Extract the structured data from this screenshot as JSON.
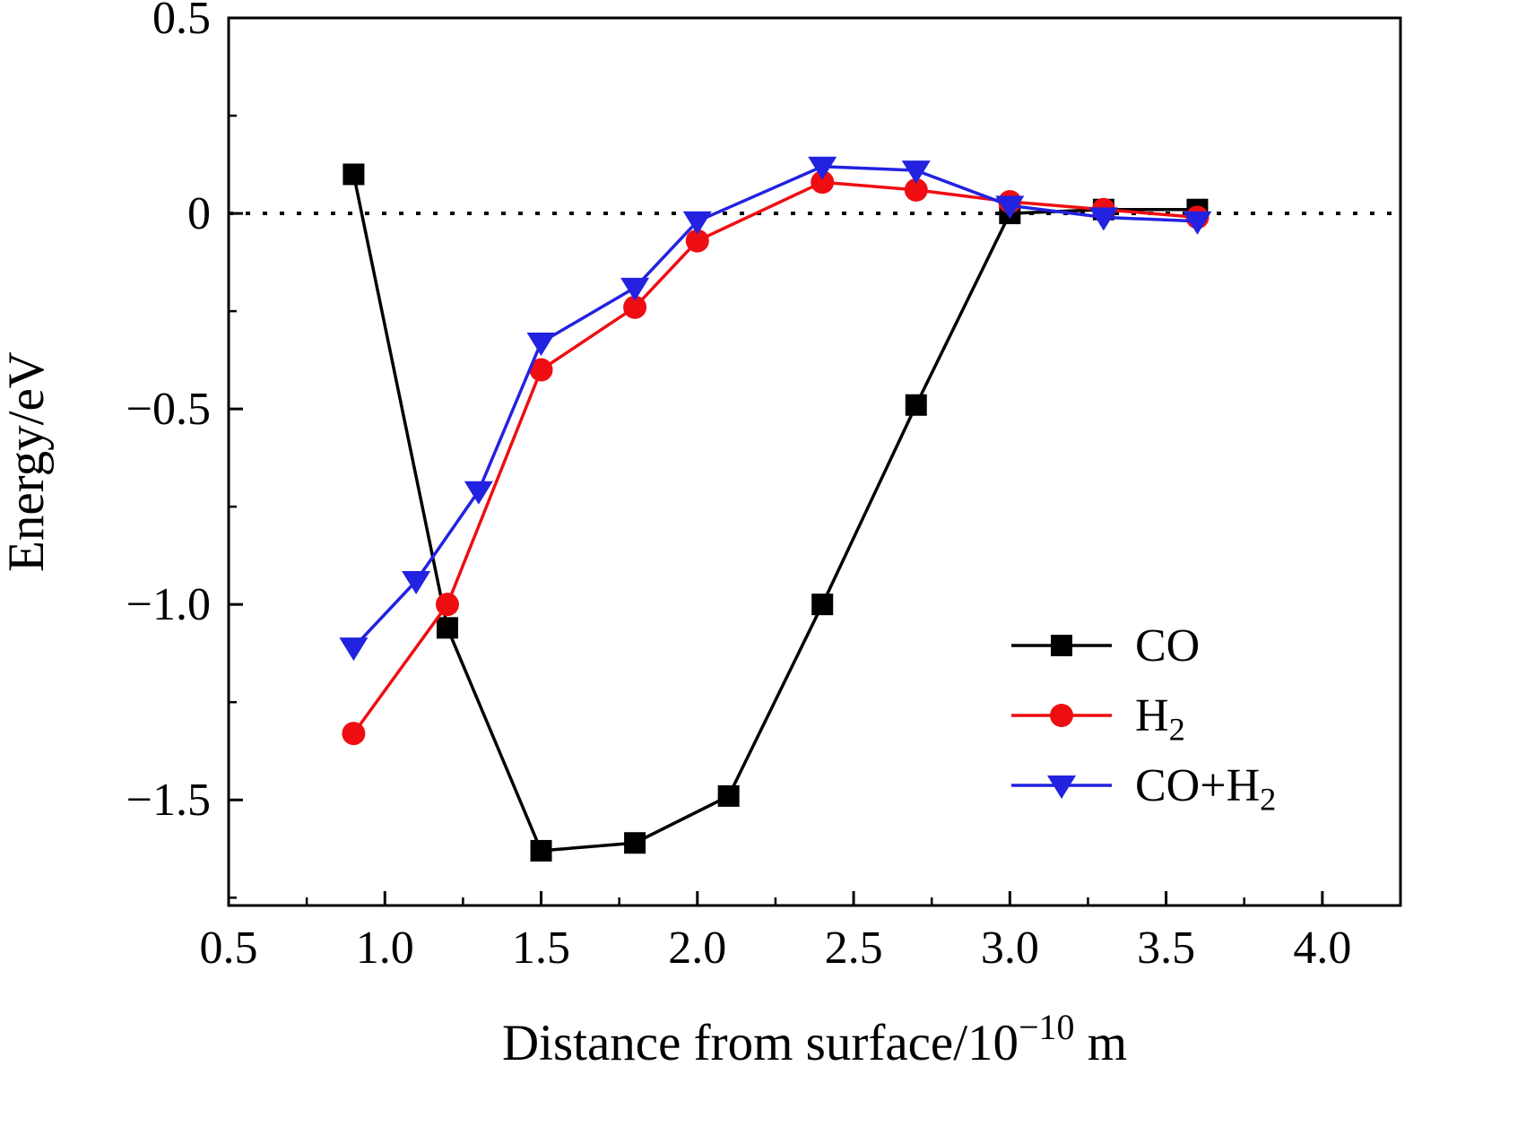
{
  "figure": {
    "background_color": "#ffffff",
    "frame_color": "#000000"
  },
  "chart_data": {
    "type": "line",
    "title": "",
    "xlabel": "Distance from surface/10⁻¹⁰ m",
    "ylabel": "Energy/eV",
    "xlabel_rich": [
      {
        "t": "Distance from surface/10"
      },
      {
        "t": "−10",
        "style": "sup"
      },
      {
        "t": " m"
      }
    ],
    "ylabel_rich": [
      {
        "t": "Energy/eV"
      }
    ],
    "xlim": [
      0.5,
      4.25
    ],
    "ylim": [
      -1.77,
      0.5
    ],
    "grid": false,
    "zero_line": {
      "y": 0,
      "style": "dotted",
      "color": "#000000"
    },
    "xtick_values": [
      0.5,
      1.0,
      1.5,
      2.0,
      2.5,
      3.0,
      3.5,
      4.0
    ],
    "xtick_labels": [
      "0.5",
      "1.0",
      "1.5",
      "2.0",
      "2.5",
      "3.0",
      "3.5",
      "4.0"
    ],
    "ytick_values": [
      0.5,
      0,
      -0.5,
      -1.0,
      -1.5
    ],
    "ytick_labels": [
      "0.5",
      "0",
      "−0.5",
      "−1.0",
      "−1.5"
    ],
    "x_minor_ticks": [
      0.75,
      1.25,
      1.75,
      2.25,
      2.75,
      3.25,
      3.75
    ],
    "y_minor_ticks": [
      0.25,
      -0.25,
      -0.75,
      -1.25,
      -1.75
    ],
    "legend_position": "lower-right",
    "series": [
      {
        "id": "CO",
        "name": "CO",
        "name_rich": [
          {
            "t": "CO"
          }
        ],
        "color": "#000000",
        "marker": "square",
        "x": [
          0.9,
          1.2,
          1.5,
          1.8,
          2.1,
          2.4,
          2.7,
          3.0,
          3.3,
          3.6
        ],
        "y": [
          0.1,
          -1.06,
          -1.63,
          -1.61,
          -1.49,
          -1.0,
          -0.49,
          0.0,
          0.01,
          0.01
        ]
      },
      {
        "id": "H2",
        "name": "H₂",
        "name_rich": [
          {
            "t": "H"
          },
          {
            "t": "2",
            "style": "sub"
          }
        ],
        "color": "#ee0e12",
        "marker": "circle",
        "x": [
          0.9,
          1.2,
          1.5,
          1.8,
          2.0,
          2.4,
          2.7,
          3.0,
          3.3,
          3.6
        ],
        "y": [
          -1.33,
          -1.0,
          -0.4,
          -0.24,
          -0.07,
          0.08,
          0.06,
          0.03,
          0.01,
          -0.01
        ]
      },
      {
        "id": "CO_H2",
        "name": "CO+H₂",
        "name_rich": [
          {
            "t": "CO+H"
          },
          {
            "t": "2",
            "style": "sub"
          }
        ],
        "color": "#2222e0",
        "marker": "triangle-down",
        "x": [
          0.9,
          1.1,
          1.3,
          1.5,
          1.8,
          2.0,
          2.4,
          2.7,
          3.0,
          3.3,
          3.6
        ],
        "y": [
          -1.11,
          -0.94,
          -0.71,
          -0.33,
          -0.19,
          -0.02,
          0.12,
          0.11,
          0.02,
          -0.01,
          -0.02
        ]
      }
    ]
  }
}
